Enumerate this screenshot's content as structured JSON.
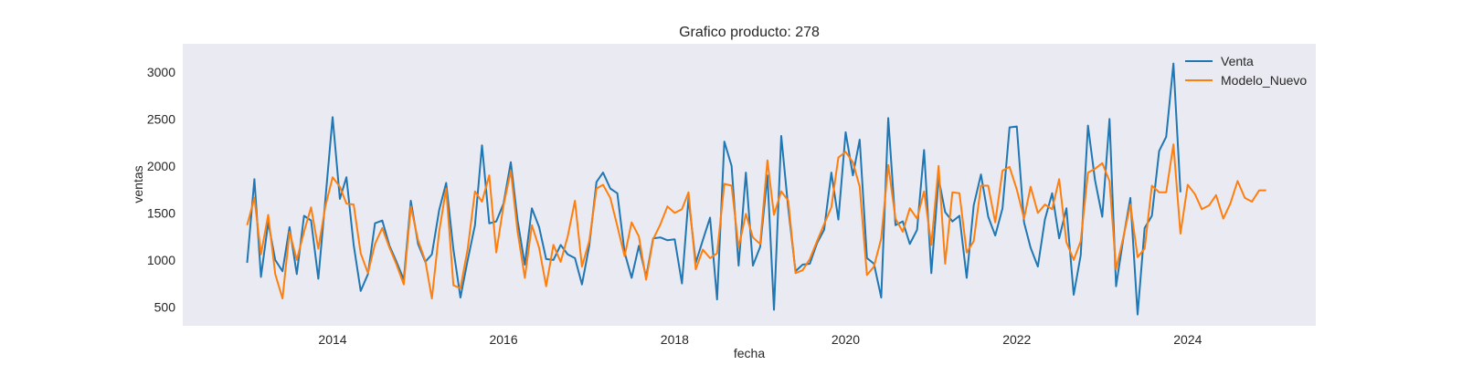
{
  "chart_data": {
    "type": "line",
    "title": "Grafico producto: 278",
    "xlabel": "fecha",
    "ylabel": "ventas",
    "xlim": [
      "2012-04-01",
      "2025-07-01"
    ],
    "ylim": [
      300,
      3300
    ],
    "x_ticks": [
      {
        "date": "2014-01-01",
        "label": "2014"
      },
      {
        "date": "2016-01-01",
        "label": "2016"
      },
      {
        "date": "2018-01-01",
        "label": "2018"
      },
      {
        "date": "2020-01-01",
        "label": "2020"
      },
      {
        "date": "2022-01-01",
        "label": "2022"
      },
      {
        "date": "2024-01-01",
        "label": "2024"
      }
    ],
    "y_ticks": [
      500,
      1000,
      1500,
      2000,
      2500,
      3000
    ],
    "grid": false,
    "legend_position": "top-right",
    "colors": {
      "plot_background": "#eaeaf2",
      "Venta": "#1f77b4",
      "Modelo_Nuevo": "#ff7f0e"
    },
    "series": [
      {
        "name": "Venta",
        "start": "2013-01",
        "frequency": "monthly",
        "values": [
          970,
          1860,
          820,
          1400,
          1000,
          880,
          1350,
          850,
          1470,
          1420,
          800,
          1640,
          2520,
          1650,
          1880,
          1160,
          670,
          850,
          1390,
          1420,
          1150,
          980,
          790,
          1630,
          1170,
          980,
          1060,
          1530,
          1820,
          1110,
          600,
          1000,
          1370,
          2220,
          1390,
          1410,
          1600,
          2040,
          1420,
          950,
          1550,
          1350,
          1010,
          1000,
          1160,
          1060,
          1020,
          740,
          1150,
          1830,
          1930,
          1760,
          1710,
          1080,
          810,
          1150,
          820,
          1230,
          1240,
          1210,
          1220,
          750,
          1660,
          970,
          1210,
          1450,
          580,
          2260,
          2000,
          940,
          1930,
          940,
          1140,
          1900,
          470,
          2320,
          1550,
          880,
          950,
          960,
          1180,
          1320,
          1930,
          1430,
          2360,
          1900,
          2280,
          1020,
          960,
          600,
          2510,
          1370,
          1410,
          1170,
          1320,
          2170,
          860,
          1870,
          1510,
          1410,
          1470,
          810,
          1580,
          1910,
          1460,
          1260,
          1550,
          2410,
          2420,
          1400,
          1130,
          930,
          1430,
          1710,
          1230,
          1550,
          630,
          1050,
          2430,
          1850,
          1460,
          2500,
          720,
          1230,
          1660,
          420,
          1340,
          1470,
          2160,
          2310,
          3090,
          1720
        ]
      },
      {
        "name": "Modelo_Nuevo",
        "start": "2013-01",
        "frequency": "monthly",
        "values": [
          1370,
          1660,
          1060,
          1480,
          850,
          590,
          1300,
          1000,
          1300,
          1560,
          1120,
          1570,
          1880,
          1780,
          1600,
          1590,
          1070,
          860,
          1170,
          1340,
          1130,
          950,
          740,
          1570,
          1210,
          990,
          590,
          1300,
          1760,
          730,
          700,
          1120,
          1730,
          1620,
          1900,
          1080,
          1580,
          1950,
          1300,
          810,
          1370,
          1130,
          720,
          1160,
          980,
          1250,
          1630,
          930,
          1200,
          1760,
          1800,
          1660,
          1360,
          1040,
          1400,
          1250,
          790,
          1220,
          1380,
          1570,
          1500,
          1540,
          1720,
          900,
          1110,
          1020,
          1070,
          1810,
          1790,
          1130,
          1490,
          1240,
          1170,
          2060,
          1480,
          1730,
          1630,
          860,
          890,
          1010,
          1200,
          1380,
          1560,
          2090,
          2150,
          2040,
          1780,
          840,
          930,
          1230,
          2010,
          1440,
          1300,
          1550,
          1440,
          1730,
          1160,
          2000,
          960,
          1720,
          1710,
          1080,
          1200,
          1790,
          1790,
          1400,
          1950,
          1990,
          1750,
          1440,
          1780,
          1500,
          1590,
          1540,
          1860,
          1190,
          1000,
          1200,
          1930,
          1970,
          2030,
          1840,
          900,
          1240,
          1590,
          1030,
          1120,
          1790,
          1720,
          1720,
          2230,
          1280,
          1800,
          1700,
          1540,
          1580,
          1690,
          1440,
          1600,
          1840,
          1660,
          1620,
          1740,
          1740
        ]
      }
    ]
  }
}
